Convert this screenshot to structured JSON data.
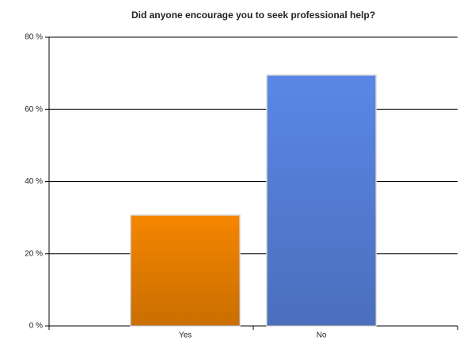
{
  "chart_data": {
    "type": "bar",
    "title": "Did anyone encourage you to seek professional help?",
    "categories": [
      "Yes",
      "No"
    ],
    "values": [
      30.7,
      69.5
    ],
    "colors": [
      "#f58600",
      "#5a87e6"
    ],
    "ylim": [
      0,
      80
    ],
    "yticks": [
      {
        "value": 0,
        "label": "0 %"
      },
      {
        "value": 20,
        "label": "20 %"
      },
      {
        "value": 40,
        "label": "40 %"
      },
      {
        "value": 60,
        "label": "60 %"
      },
      {
        "value": 80,
        "label": "80 %"
      }
    ],
    "grid": true
  }
}
